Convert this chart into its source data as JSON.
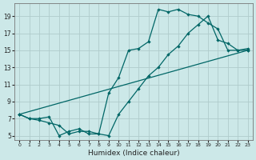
{
  "xlabel": "Humidex (Indice chaleur)",
  "bg_color": "#cce8e8",
  "grid_color": "#b0cccc",
  "line_color": "#006666",
  "xlim": [
    -0.5,
    23.5
  ],
  "ylim": [
    4.5,
    20.5
  ],
  "xticks": [
    0,
    1,
    2,
    3,
    4,
    5,
    6,
    7,
    8,
    9,
    10,
    11,
    12,
    13,
    14,
    15,
    16,
    17,
    18,
    19,
    20,
    21,
    22,
    23
  ],
  "yticks": [
    5,
    7,
    9,
    11,
    13,
    15,
    17,
    19
  ],
  "line1_x": [
    0,
    1,
    2,
    3,
    4,
    5,
    6,
    7,
    8,
    9,
    10,
    11,
    12,
    13,
    14,
    15,
    16,
    17,
    18,
    19,
    20,
    21,
    22,
    23
  ],
  "line1_y": [
    7.5,
    7.0,
    6.8,
    6.5,
    6.2,
    5.2,
    5.5,
    5.5,
    5.2,
    10.0,
    11.8,
    15.0,
    15.2,
    16.0,
    19.8,
    19.5,
    19.8,
    19.2,
    19.0,
    18.2,
    17.5,
    15.0,
    15.0,
    15.0
  ],
  "line2_x": [
    0,
    1,
    2,
    3,
    4,
    5,
    6,
    7,
    8,
    9,
    10,
    11,
    12,
    13,
    14,
    15,
    16,
    17,
    18,
    19,
    20,
    21,
    22,
    23
  ],
  "line2_y": [
    7.5,
    7.0,
    7.0,
    7.2,
    5.0,
    5.5,
    5.8,
    5.2,
    5.2,
    5.0,
    7.5,
    9.0,
    10.5,
    12.0,
    13.0,
    14.5,
    15.5,
    17.0,
    18.0,
    19.0,
    16.2,
    15.8,
    15.0,
    15.2
  ],
  "line3_x": [
    0,
    23
  ],
  "line3_y": [
    7.5,
    15.0
  ]
}
